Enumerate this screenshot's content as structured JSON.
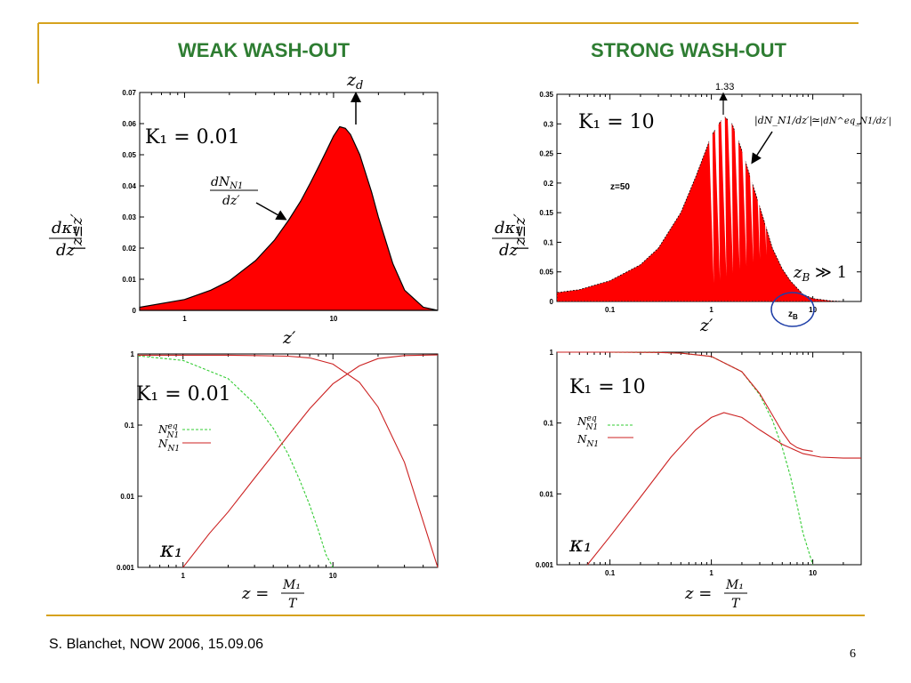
{
  "slide": {
    "left_heading": "WEAK WASH-OUT",
    "right_heading": "STRONG WASH-OUT",
    "footer": "S. Blanchet, NOW 2006, 15.09.06",
    "page_number": "6",
    "accent_color": "#d6a21e",
    "heading_color": "#2e7d32"
  },
  "labels": {
    "k_weak": "K₁ = 0.01",
    "k_strong": "K₁ = 10",
    "zd": "z",
    "zd_sub": "d",
    "peak_label": "1.33",
    "zB_label": "z",
    "zB_sub": "B",
    "zB_rest": " ≫ 1",
    "zB_small": "z",
    "zB_small_sub": "B",
    "z50": "z=50",
    "dndz_num": "dN",
    "dndz_num_sub": "N1",
    "dndz_den": "dz′",
    "equality_left": "|dN_N1/dz′|",
    "equality_sym": "≃",
    "equality_right": "|dN^eq_N1/dz′|",
    "ylab_num": "dκ₁",
    "ylab_den": "dz",
    "ylab_cond": "|z≤z′",
    "xlab_top": "z′",
    "xlab_bottom_z": "z =",
    "xlab_bottom_num": "M₁",
    "xlab_bottom_den": "T",
    "legend_eq": "N",
    "legend_eq_sup": "eq",
    "legend_eq_sub": "N1",
    "legend_n": "N",
    "legend_n_sub": "N1",
    "kappa": "κ₁"
  },
  "chart_data": [
    {
      "id": "weak-top",
      "type": "area",
      "xscale": "log",
      "xlim": [
        0.5,
        50
      ],
      "ylim": [
        0,
        0.07
      ],
      "xticks": [
        "1",
        "10"
      ],
      "yticks": [
        "0",
        "0.01",
        "0.02",
        "0.03",
        "0.04",
        "0.05",
        "0.06",
        "0.07"
      ],
      "series": [
        {
          "x": [
            0.5,
            1,
            1.5,
            2,
            3,
            4,
            5,
            6,
            7,
            8,
            9,
            10,
            11,
            12,
            13,
            15,
            18,
            20,
            25,
            30,
            40,
            50
          ],
          "y": [
            0.001,
            0.0035,
            0.0065,
            0.0095,
            0.016,
            0.0225,
            0.029,
            0.035,
            0.041,
            0.0465,
            0.0515,
            0.056,
            0.059,
            0.0585,
            0.0565,
            0.05,
            0.038,
            0.03,
            0.015,
            0.0065,
            0.001,
            0.0
          ]
        }
      ],
      "fill": "#ff0000"
    },
    {
      "id": "strong-top",
      "type": "area",
      "xscale": "log",
      "xlim": [
        0.03,
        30
      ],
      "ylim": [
        0,
        0.35
      ],
      "xticks": [
        "0.1",
        "1",
        "10"
      ],
      "yticks": [
        "0",
        "0.05",
        "0.1",
        "0.15",
        "0.2",
        "0.25",
        "0.3",
        "0.35"
      ],
      "series": [
        {
          "x": [
            0.03,
            0.05,
            0.1,
            0.2,
            0.3,
            0.5,
            0.7,
            1.0,
            1.33,
            1.6,
            2.0,
            3.0,
            4.0,
            5.0,
            6.0,
            8.0,
            10,
            15,
            20,
            30
          ],
          "y": [
            0.015,
            0.02,
            0.035,
            0.062,
            0.09,
            0.15,
            0.21,
            0.28,
            0.313,
            0.3,
            0.255,
            0.16,
            0.09,
            0.055,
            0.035,
            0.012,
            0.005,
            0.001,
            0.0,
            0.0
          ]
        }
      ],
      "fill": "#ff0000"
    },
    {
      "id": "weak-bottom",
      "type": "line",
      "xscale": "log",
      "yscale": "log",
      "xlim": [
        0.5,
        50
      ],
      "ylim": [
        0.001,
        1
      ],
      "xticks": [
        "1",
        "10"
      ],
      "yticks": [
        "0.001",
        "0.01",
        "0.1",
        "1"
      ],
      "series": [
        {
          "name": "N_N1^eq",
          "color": "#33cc33",
          "dashed": true,
          "x": [
            0.5,
            1,
            2,
            3,
            4,
            5,
            6,
            7,
            8,
            9,
            10
          ],
          "y": [
            0.94,
            0.81,
            0.45,
            0.2,
            0.09,
            0.04,
            0.017,
            0.0075,
            0.0033,
            0.0015,
            0.0007
          ]
        },
        {
          "name": "N_N1",
          "color": "#cc2222",
          "dashed": false,
          "x": [
            0.5,
            1,
            2,
            3,
            5,
            7,
            10,
            15,
            20,
            30,
            50
          ],
          "y": [
            0.96,
            0.96,
            0.96,
            0.95,
            0.93,
            0.88,
            0.72,
            0.4,
            0.18,
            0.03,
            0.001
          ]
        },
        {
          "name": "kappa1",
          "color": "#cc2222",
          "dashed": false,
          "x": [
            1,
            1.5,
            2,
            3,
            5,
            7,
            10,
            15,
            20,
            30,
            50
          ],
          "y": [
            0.001,
            0.003,
            0.006,
            0.018,
            0.07,
            0.17,
            0.38,
            0.68,
            0.86,
            0.95,
            0.97
          ]
        }
      ]
    },
    {
      "id": "strong-bottom",
      "type": "line",
      "xscale": "log",
      "yscale": "log",
      "xlim": [
        0.03,
        30
      ],
      "ylim": [
        0.001,
        1
      ],
      "xticks": [
        "0.1",
        "1",
        "10"
      ],
      "yticks": [
        "0.001",
        "0.01",
        "0.1",
        "1"
      ],
      "series": [
        {
          "name": "N_N1^eq",
          "color": "#33cc33",
          "dashed": true,
          "x": [
            0.03,
            0.1,
            0.3,
            0.5,
            1,
            2,
            3,
            4,
            5,
            6,
            7,
            8,
            10
          ],
          "y": [
            1.0,
            1.0,
            0.99,
            0.97,
            0.87,
            0.53,
            0.25,
            0.11,
            0.045,
            0.018,
            0.007,
            0.0028,
            0.0008
          ]
        },
        {
          "name": "N_N1",
          "color": "#cc2222",
          "dashed": false,
          "x": [
            0.03,
            0.1,
            0.3,
            0.5,
            1,
            2,
            3,
            4,
            5,
            6,
            7,
            8,
            10
          ],
          "y": [
            1.0,
            1.0,
            0.99,
            0.97,
            0.87,
            0.53,
            0.26,
            0.13,
            0.075,
            0.052,
            0.045,
            0.042,
            0.04
          ]
        },
        {
          "name": "kappa1",
          "color": "#cc2222",
          "dashed": false,
          "x": [
            0.06,
            0.1,
            0.2,
            0.4,
            0.7,
            1.0,
            1.33,
            2,
            3,
            5,
            8,
            12,
            20,
            30
          ],
          "y": [
            0.001,
            0.0025,
            0.009,
            0.033,
            0.08,
            0.12,
            0.14,
            0.12,
            0.08,
            0.05,
            0.037,
            0.033,
            0.032,
            0.032
          ]
        }
      ]
    }
  ]
}
